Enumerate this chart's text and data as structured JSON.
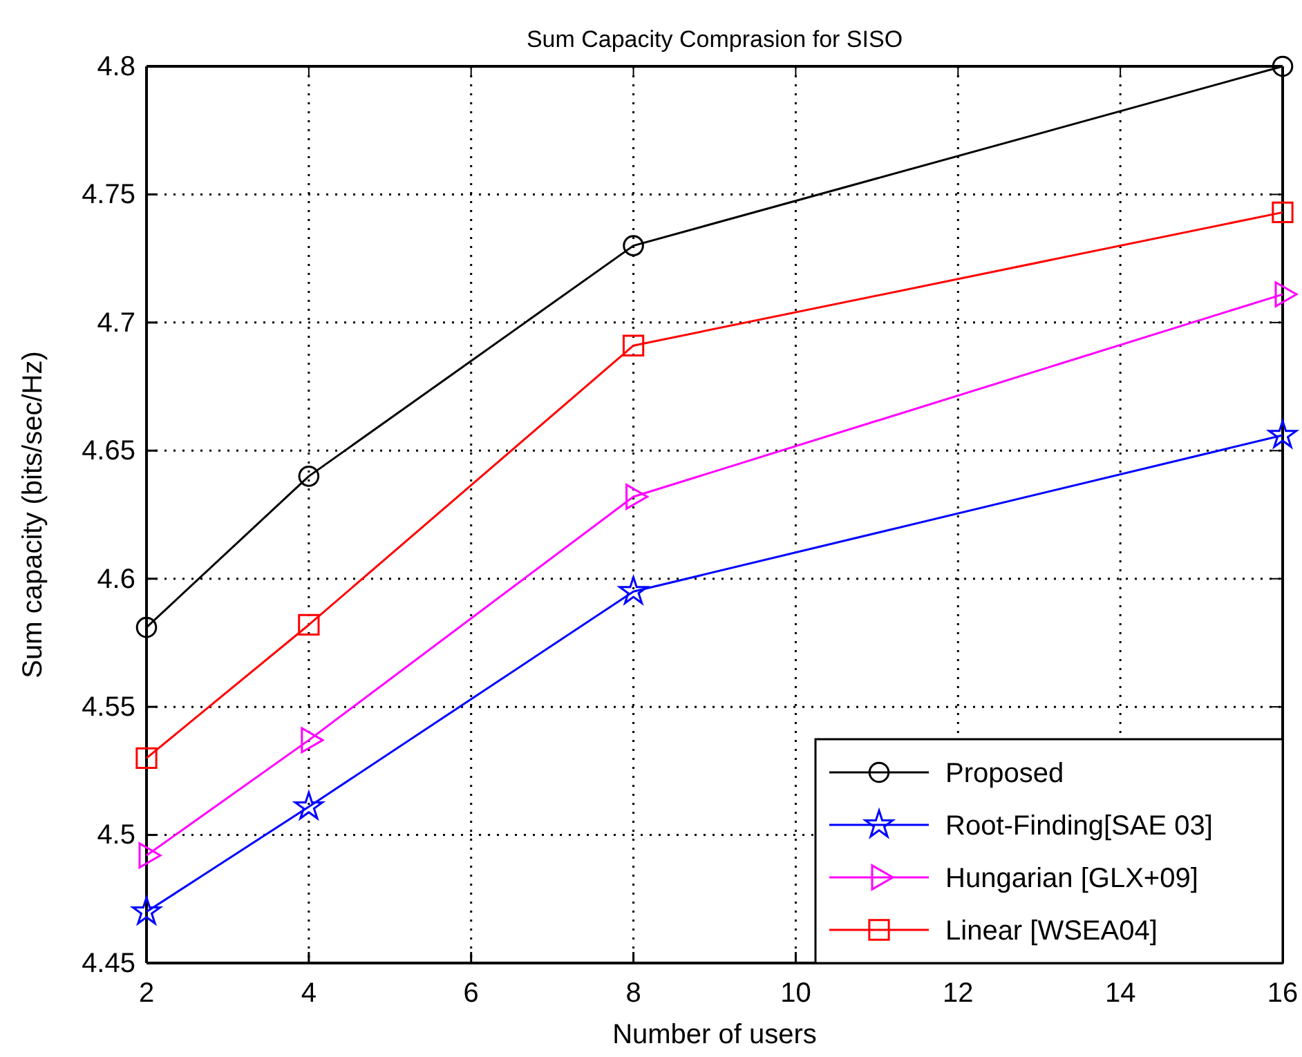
{
  "chart_data": {
    "type": "line",
    "title": "Sum Capacity Comprasion for SISO",
    "xlabel": "Number of users",
    "ylabel": "Sum capacity (bits/sec/Hz)",
    "x": [
      2,
      4,
      8,
      16
    ],
    "xlim": [
      2,
      16
    ],
    "xticks": [
      2,
      4,
      6,
      8,
      10,
      12,
      14,
      16
    ],
    "ylim": [
      4.45,
      4.8
    ],
    "yticks": [
      4.45,
      4.5,
      4.55,
      4.6,
      4.65,
      4.7,
      4.75,
      4.8
    ],
    "grid": true,
    "legend": "bottom right",
    "line_style": "solid",
    "series": [
      {
        "name": "Proposed",
        "color": "#000000",
        "marker": "circle",
        "values": [
          4.581,
          4.64,
          4.73,
          4.8
        ]
      },
      {
        "name": "Root-Finding[SAE 03]",
        "color": "#0000ff",
        "marker": "star",
        "values": [
          4.47,
          4.511,
          4.595,
          4.656
        ]
      },
      {
        "name": "Hungarian [GLX+09]",
        "color": "#ff00ff",
        "marker": "triangle",
        "values": [
          4.492,
          4.537,
          4.632,
          4.711
        ]
      },
      {
        "name": "Linear [WSEA04]",
        "color": "#ff0000",
        "marker": "square",
        "values": [
          4.53,
          4.582,
          4.691,
          4.743
        ]
      }
    ]
  }
}
